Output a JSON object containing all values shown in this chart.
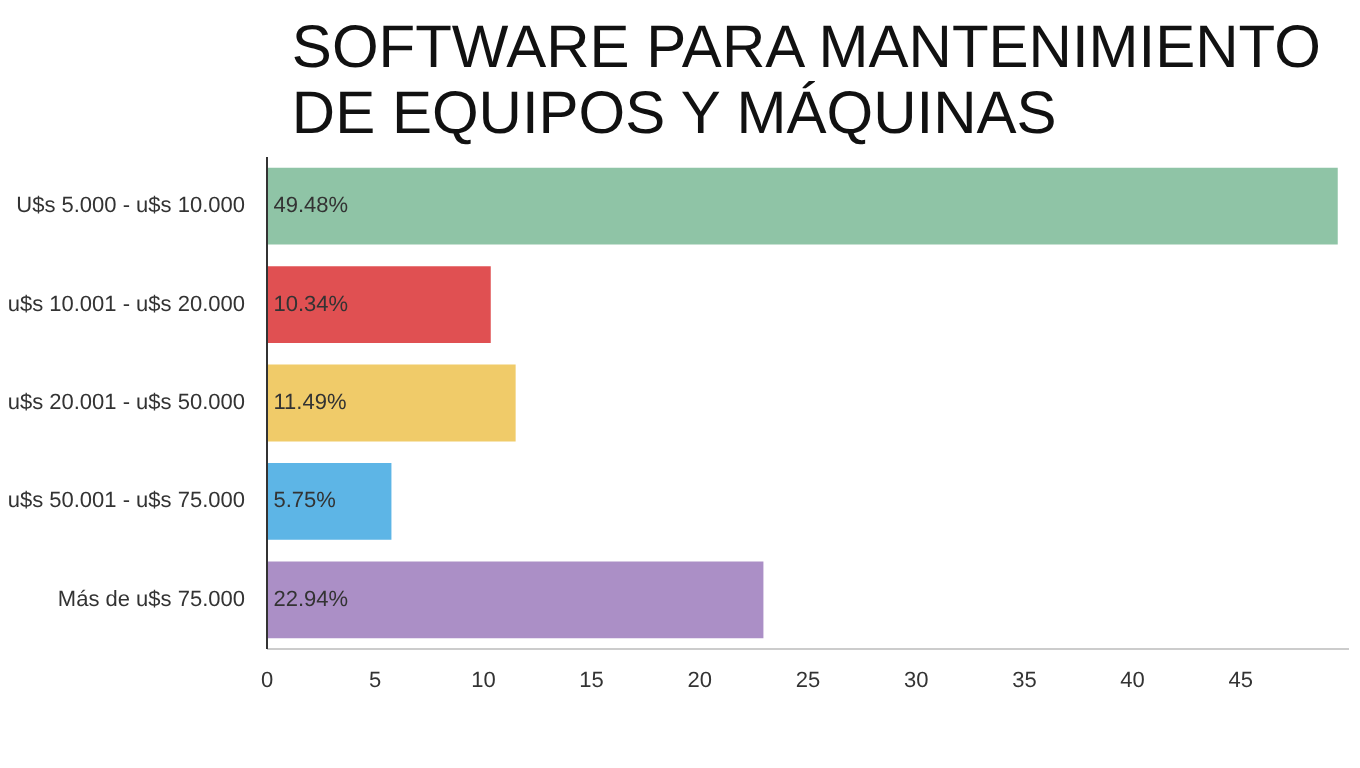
{
  "chart_data": {
    "type": "bar",
    "orientation": "horizontal",
    "title": "SOFTWARE PARA MANTENIMIENTO\nDE EQUIPOS Y MÁQUINAS",
    "categories": [
      "U$s 5.000 - u$s 10.000",
      "u$s 10.001 - u$s 20.000",
      "u$s 20.001 - u$s 50.000",
      "u$s 50.001 - u$s 75.000",
      "Más de u$s 75.000"
    ],
    "values": [
      49.48,
      10.34,
      11.49,
      5.75,
      22.94
    ],
    "colors": [
      "#8fc4a6",
      "#e05052",
      "#f0cb69",
      "#5db5e6",
      "#ab8fc6"
    ],
    "value_labels": [
      "49.48%",
      "10.34%",
      "11.49%",
      "5.75%",
      "22.94%"
    ],
    "xlim": [
      0,
      50
    ],
    "xticks": [
      0,
      5,
      10,
      15,
      20,
      25,
      30,
      35,
      40,
      45
    ],
    "grid": false
  }
}
